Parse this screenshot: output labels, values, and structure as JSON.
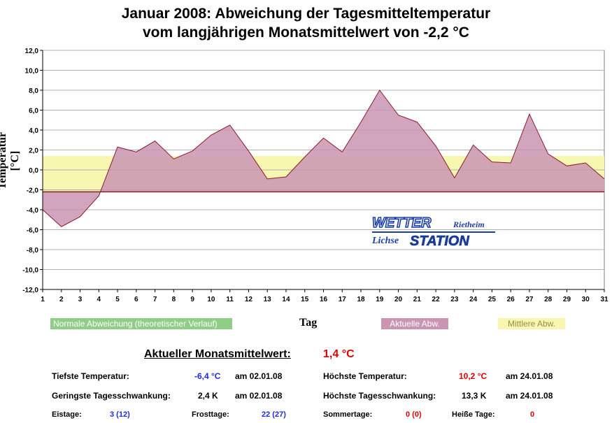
{
  "title": {
    "line1": "Januar 2008: Abweichung der Tagesmitteltemperatur",
    "line2": "vom langjährigen Monatsmittelwert von -2,2 °C"
  },
  "chart_data": {
    "type": "area",
    "title": "Januar 2008: Abweichung der Tagesmitteltemperatur vom langjährigen Monatsmittelwert von -2,2 °C",
    "xlabel": "Tag",
    "ylabel": "Temperatur [°C]",
    "ylim": [
      -12,
      12
    ],
    "yticks": [
      "-12,0",
      "-10,0",
      "-8,0",
      "-6,0",
      "-4,0",
      "-2,0",
      "0,0",
      "2,0",
      "4,0",
      "6,0",
      "8,0",
      "10,0",
      "12,0"
    ],
    "x": [
      1,
      2,
      3,
      4,
      5,
      6,
      7,
      8,
      9,
      10,
      11,
      12,
      13,
      14,
      15,
      16,
      17,
      18,
      19,
      20,
      21,
      22,
      23,
      24,
      25,
      26,
      27,
      28,
      29,
      30,
      31
    ],
    "baseline": -2.2,
    "mean_band": [
      -2.2,
      1.4
    ],
    "series": [
      {
        "name": "Aktuelle Abw.",
        "values": [
          -4.0,
          -5.7,
          -4.7,
          -2.6,
          2.3,
          1.8,
          2.9,
          1.1,
          1.9,
          3.5,
          4.5,
          1.9,
          -0.9,
          -0.7,
          1.3,
          3.2,
          1.8,
          4.8,
          8.0,
          5.5,
          4.8,
          2.4,
          -0.8,
          2.5,
          0.8,
          0.7,
          5.6,
          1.6,
          0.4,
          0.7,
          -0.9
        ]
      }
    ],
    "legend": [
      "Normale Abweichung (theoretischer Verlauf)",
      "Aktuelle Abw.",
      "Mittlere Abw."
    ],
    "colors": {
      "fill": "#c995b3",
      "line": "#8b1a2a",
      "band": "#f8f7b0",
      "baseline": "#8b1a2a",
      "grid": "#b0b0b0"
    }
  },
  "legend": {
    "normal": "Normale Abweichung (theoretischer Verlauf)",
    "actual": "Aktuelle Abw.",
    "mean": "Mittlere Abw.",
    "xaxis": "Tag",
    "yaxis": "Temperatur [°C]"
  },
  "logo": {
    "wetter": "WETTER",
    "rietheim": "Rietheim",
    "lichse": "Lichse",
    "station": "STATION"
  },
  "stats": {
    "monthly_label": "Aktueller Monatsmittelwert:",
    "monthly_value": "1,4 °C",
    "min_label": "Tiefste Temperatur:",
    "min_value": "-6,4 °C",
    "min_date": "am 02.01.08",
    "max_label": "Höchste Temperatur:",
    "max_value": "10,2 °C",
    "max_date": "am 24.01.08",
    "minswing_label": "Geringste Tagesschwankung:",
    "minswing_value": "2,4 K",
    "minswing_date": "am 02.01.08",
    "maxswing_label": "Höchste Tagesschwankung:",
    "maxswing_value": "13,3 K",
    "maxswing_date": "am 24.01.08",
    "eistage_label": "Eistage:",
    "eistage_value": "3 (12)",
    "frosttage_label": "Frosttage:",
    "frosttage_value": "22 (27)",
    "sommertage_label": "Sommertage:",
    "sommertage_value": "0 (0)",
    "heisse_label": "Heiße Tage:",
    "heisse_value": "0"
  }
}
